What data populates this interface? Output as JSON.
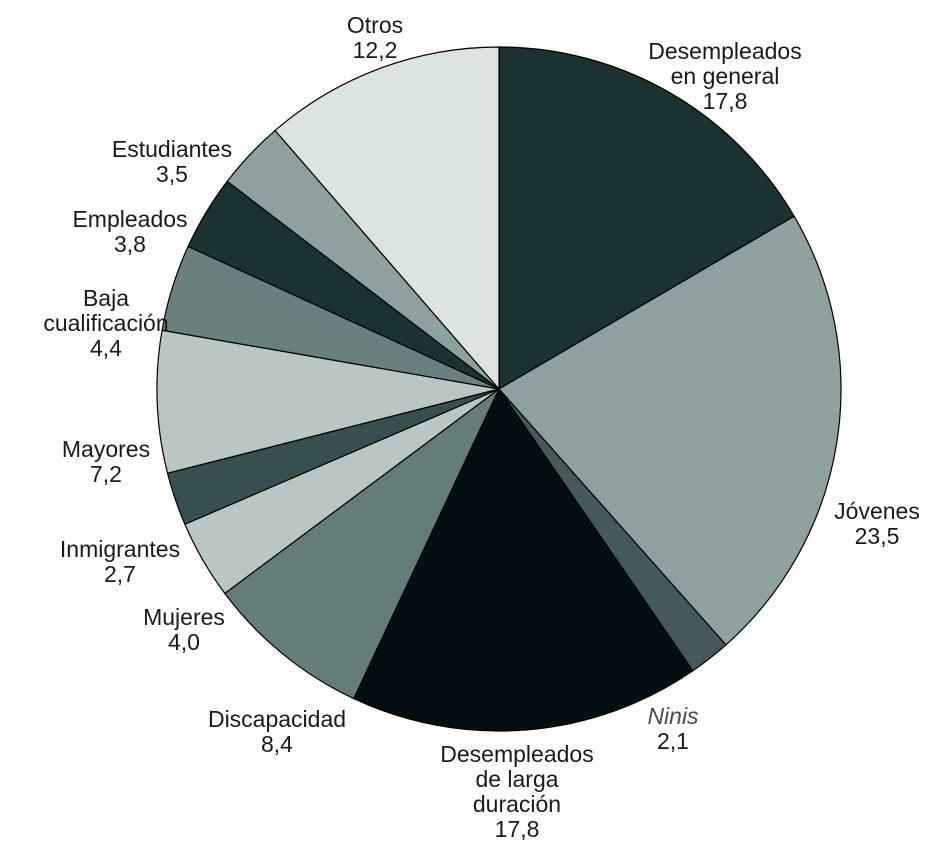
{
  "chart_data": {
    "type": "pie",
    "slices": [
      {
        "key": "desempleados-general",
        "label_lines": [
          "Desempleados",
          "en general"
        ],
        "value": 17.8,
        "value_text": "17,8",
        "color": "#1b3233",
        "italic": false
      },
      {
        "key": "jovenes",
        "label_lines": [
          "Jóvenes"
        ],
        "value": 23.5,
        "value_text": "23,5",
        "color": "#8fa19e",
        "italic": false
      },
      {
        "key": "ninis",
        "label_lines": [
          "Ninis"
        ],
        "value": 2.1,
        "value_text": "2,1",
        "color": "#45595a",
        "italic": true
      },
      {
        "key": "desempleados-larga-duracion",
        "label_lines": [
          "Desempleados",
          "de larga",
          "duración"
        ],
        "value": 17.8,
        "value_text": "17,8",
        "color": "#020e11",
        "italic": false
      },
      {
        "key": "discapacidad",
        "label_lines": [
          "Discapacidad"
        ],
        "value": 8.4,
        "value_text": "8,4",
        "color": "#647d7b",
        "italic": false
      },
      {
        "key": "mujeres",
        "label_lines": [
          "Mujeres"
        ],
        "value": 4.0,
        "value_text": "4,0",
        "color": "#b9c6c3",
        "italic": false
      },
      {
        "key": "inmigrantes",
        "label_lines": [
          "Inmigrantes"
        ],
        "value": 2.7,
        "value_text": "2,7",
        "color": "#374f50",
        "italic": false
      },
      {
        "key": "mayores",
        "label_lines": [
          "Mayores"
        ],
        "value": 7.2,
        "value_text": "7,2",
        "color": "#b9c6c3",
        "italic": false
      },
      {
        "key": "baja-cualificacion",
        "label_lines": [
          "Baja",
          "cualificación"
        ],
        "value": 4.4,
        "value_text": "4,4",
        "color": "#6a807e",
        "italic": false
      },
      {
        "key": "empleados",
        "label_lines": [
          "Empleados"
        ],
        "value": 3.8,
        "value_text": "3,8",
        "color": "#1b3233",
        "italic": false
      },
      {
        "key": "estudiantes",
        "label_lines": [
          "Estudiantes"
        ],
        "value": 3.5,
        "value_text": "3,5",
        "color": "#8fa19e",
        "italic": false
      },
      {
        "key": "otros",
        "label_lines": [
          "Otros"
        ],
        "value": 12.2,
        "value_text": "12,2",
        "color": "#dce4e1",
        "italic": false
      }
    ]
  }
}
